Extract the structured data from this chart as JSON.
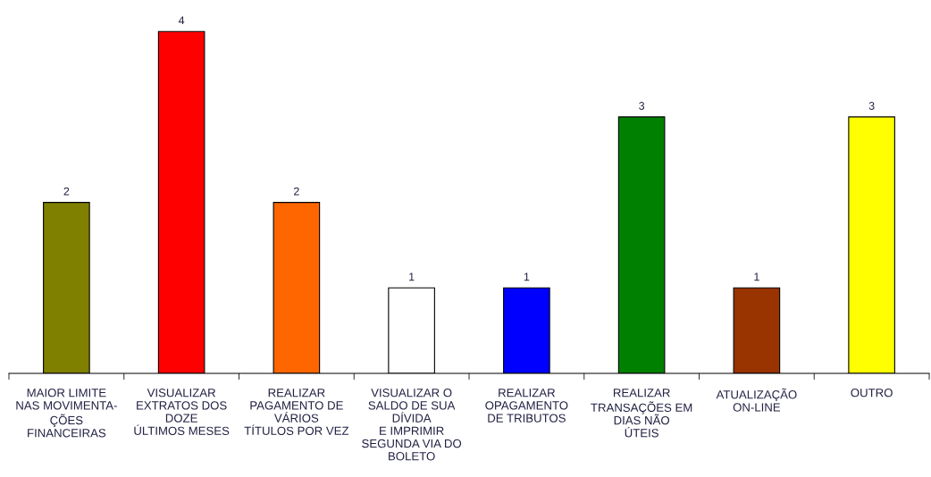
{
  "chart_data": {
    "type": "bar",
    "categories": [
      "MAIOR LIMITE\nNAS MOVIMENTA-\nÇÕES\nFINANCEIRAS",
      "VISUALIZAR\nEXTRATOS DOS\nDOZE\nÚLTIMOS MESES",
      "REALIZAR\nPAGAMENTO DE\nVÁRIOS\nTÍTULOS POR VEZ",
      "VISUALIZAR O\nSALDO DE SUA\nDÍVIDA\nE IMPRIMIR\nSEGUNDA VIA DO\nBOLETO",
      "REALIZAR\nOPAGAMENTO\nDE TRIBUTOS",
      "REALIZAR\nTRANSAÇÕES EM\nDIAS NÃO\nÚTEIS",
      "ATUALIZAÇÃO\nON-LINE",
      "OUTRO"
    ],
    "values": [
      2,
      4,
      2,
      1,
      1,
      3,
      1,
      3
    ],
    "colors": [
      "#808000",
      "#ff0000",
      "#ff6600",
      "#ffffff",
      "#0000ff",
      "#008000",
      "#993300",
      "#ffff00"
    ],
    "data_labels": true,
    "grid": false,
    "legend": false
  }
}
